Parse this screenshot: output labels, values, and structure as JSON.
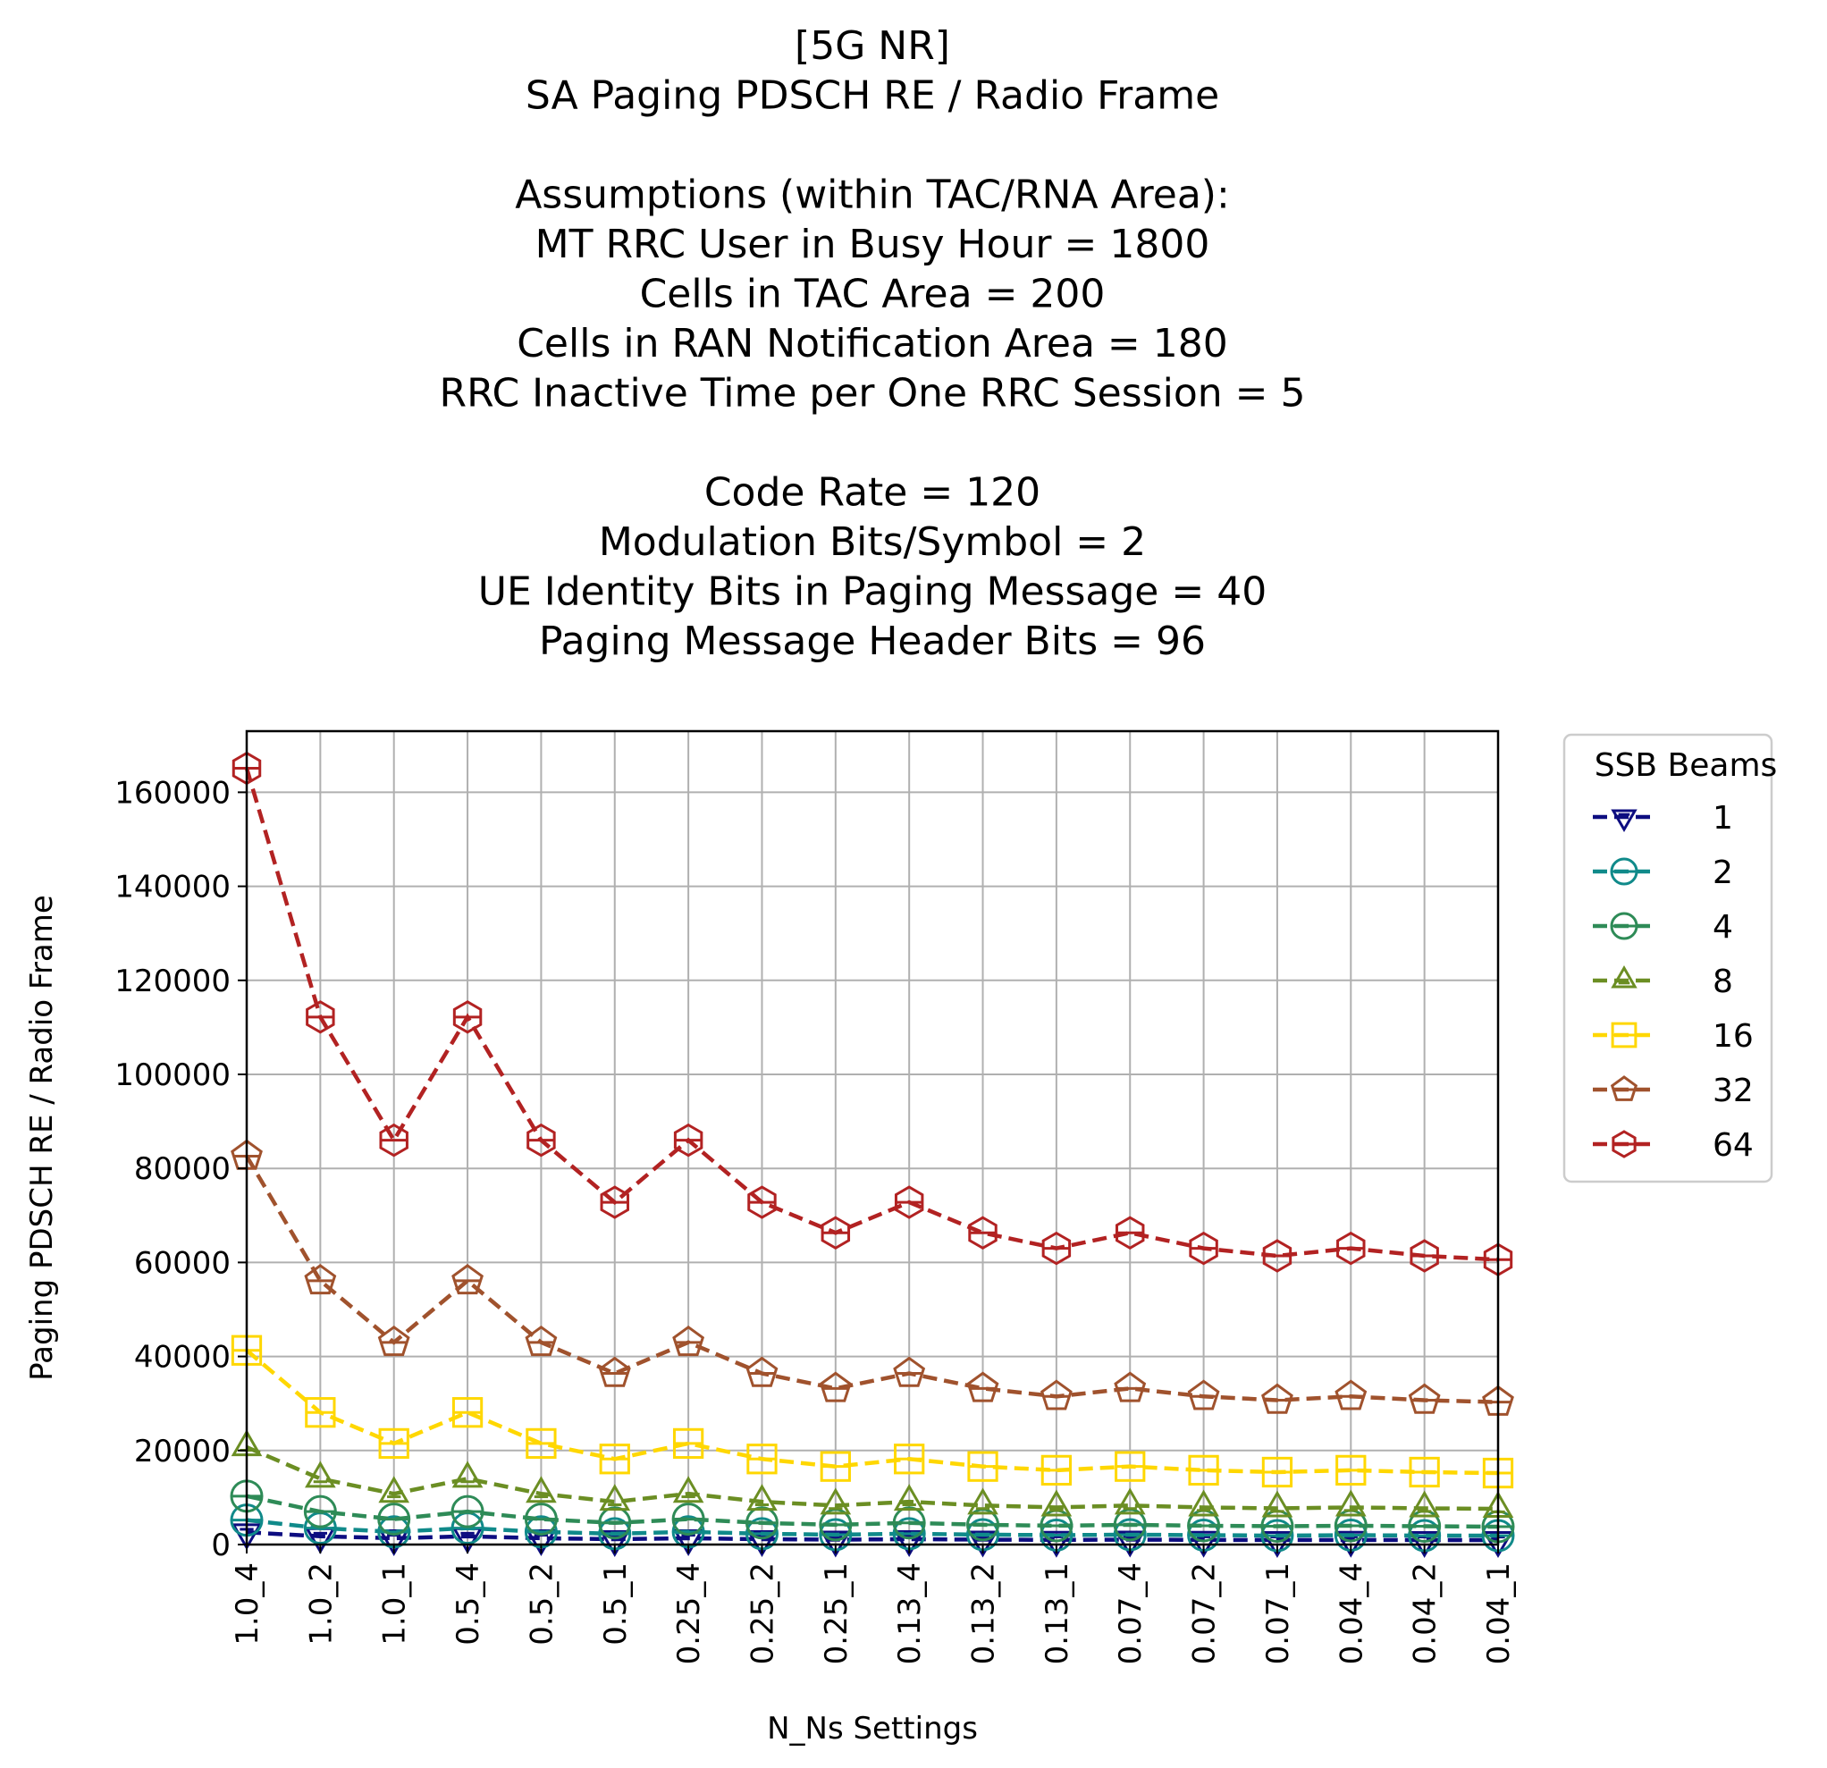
{
  "chart_data": {
    "type": "line",
    "title_lines": [
      "[5G NR]",
      "SA Paging PDSCH RE / Radio Frame",
      "",
      "Assumptions (within TAC/RNA Area):",
      "MT RRC User in Busy Hour = 1800",
      "Cells in TAC Area = 200",
      "Cells in RAN Notification Area = 180",
      "RRC Inactive Time per One RRC Session = 5",
      "",
      "Code Rate = 120",
      "Modulation Bits/Symbol = 2",
      "UE Identity Bits in Paging Message = 40",
      "Paging Message Header Bits = 96"
    ],
    "xlabel": "N_Ns Settings",
    "ylabel": "Paging PDSCH RE / Radio Frame",
    "categories": [
      "1.0_4",
      "1.0_2",
      "1.0_1",
      "0.5_4",
      "0.5_2",
      "0.5_1",
      "0.25_4",
      "0.25_2",
      "0.25_1",
      "0.13_4",
      "0.13_2",
      "0.13_1",
      "0.07_4",
      "0.07_2",
      "0.07_1",
      "0.04_4",
      "0.04_2",
      "0.04_1"
    ],
    "ylim": [
      0,
      173000
    ],
    "yticks": [
      0,
      20000,
      40000,
      60000,
      80000,
      100000,
      120000,
      140000,
      160000
    ],
    "grid": true,
    "legend": {
      "title": "SSB Beams",
      "placement": "outside-right"
    },
    "series": [
      {
        "name": "1",
        "color": "#0d0d80",
        "marker": "triangle-down",
        "values": [
          2600,
          1760,
          1340,
          1760,
          1340,
          1140,
          1340,
          1140,
          1040,
          1140,
          1040,
          990,
          1040,
          990,
          960,
          990,
          960,
          950
        ]
      },
      {
        "name": "2",
        "color": "#108a8a",
        "marker": "circle-h",
        "values": [
          5200,
          3500,
          2700,
          3500,
          2700,
          2300,
          2700,
          2300,
          2100,
          2300,
          2100,
          2000,
          2100,
          2000,
          1900,
          2000,
          1900,
          1900
        ]
      },
      {
        "name": "4",
        "color": "#2e8b57",
        "marker": "circle-h",
        "values": [
          10300,
          7000,
          5400,
          7000,
          5400,
          4600,
          5400,
          4600,
          4200,
          4600,
          4200,
          4000,
          4200,
          4000,
          3900,
          4000,
          3900,
          3800
        ]
      },
      {
        "name": "8",
        "color": "#6b8e23",
        "marker": "triangle-up",
        "values": [
          20700,
          14000,
          10800,
          14000,
          10800,
          9100,
          10800,
          9100,
          8300,
          9100,
          8300,
          7900,
          8300,
          7900,
          7700,
          7900,
          7700,
          7600
        ]
      },
      {
        "name": "16",
        "color": "#ffd700",
        "marker": "square-h",
        "values": [
          41300,
          28100,
          21500,
          28100,
          21500,
          18200,
          21500,
          18200,
          16600,
          18200,
          16600,
          15800,
          16600,
          15800,
          15400,
          15800,
          15400,
          15200
        ]
      },
      {
        "name": "32",
        "color": "#a0522d",
        "marker": "pentagon-h",
        "values": [
          82600,
          56100,
          43000,
          56100,
          43000,
          36400,
          43000,
          36400,
          33200,
          36400,
          33200,
          31500,
          33200,
          31500,
          30700,
          31500,
          30700,
          30300
        ]
      },
      {
        "name": "64",
        "color": "#b22222",
        "marker": "hexagon-h",
        "values": [
          165100,
          112200,
          86000,
          112200,
          86000,
          72800,
          86000,
          72800,
          66300,
          72800,
          66300,
          63000,
          66300,
          63000,
          61400,
          63000,
          61400,
          60600
        ]
      }
    ]
  }
}
